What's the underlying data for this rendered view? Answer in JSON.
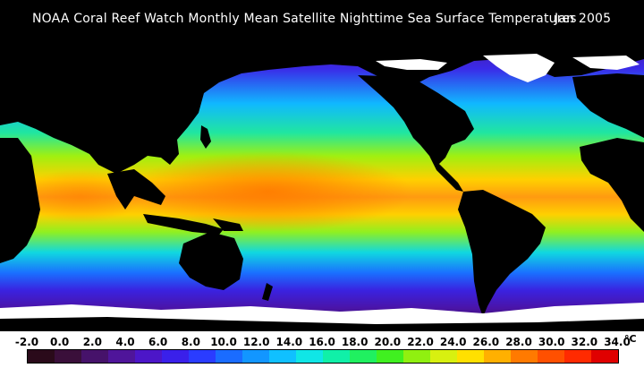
{
  "header": {
    "title": "NOAA Coral Reef Watch Monthly Mean Satellite Nighttime Sea Surface Temperatures",
    "date": "Jan 2005"
  },
  "colorbar": {
    "unit": "°C",
    "ticks": [
      "-2.0",
      "0.0",
      "2.0",
      "4.0",
      "6.0",
      "8.0",
      "10.0",
      "12.0",
      "14.0",
      "16.0",
      "18.0",
      "20.0",
      "22.0",
      "24.0",
      "26.0",
      "28.0",
      "30.0",
      "32.0",
      "34.0"
    ],
    "colors": [
      "#2a0a1a",
      "#3a0f3a",
      "#46126a",
      "#4f159a",
      "#4c16c8",
      "#3a20ea",
      "#2a3cff",
      "#1a6cff",
      "#1296ff",
      "#10c0ff",
      "#10e6e6",
      "#10f0a8",
      "#20f060",
      "#40f020",
      "#90f010",
      "#d8f010",
      "#ffe000",
      "#ffb000",
      "#ff7a00",
      "#ff5000",
      "#ff2a00",
      "#e00000"
    ]
  },
  "legend_colors": {
    "land": "#000000",
    "ice": "#ffffff",
    "warm": "#ff8c00",
    "cold": "#4a16c0"
  }
}
